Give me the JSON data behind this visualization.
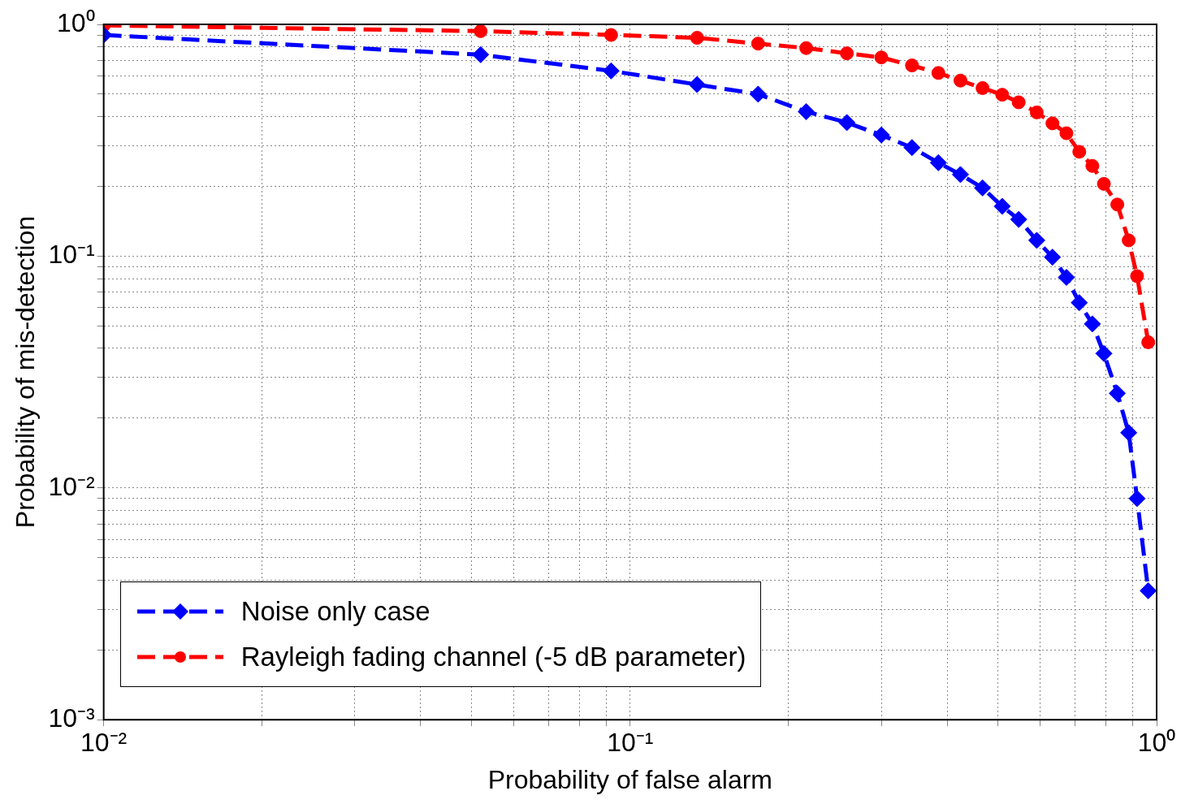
{
  "chart_data": {
    "type": "line",
    "xlabel": "Probability of false alarm",
    "ylabel": "Probability of mis-detection",
    "log": "xy",
    "grid": true,
    "legend": "bottom left",
    "xlim": [
      0.01,
      1
    ],
    "ylim": [
      0.001,
      1
    ],
    "xticks": [
      {
        "value": 0.01,
        "label": "10⁻²"
      },
      {
        "value": 0.1,
        "label": "10⁻¹"
      },
      {
        "value": 1,
        "label": "10⁰"
      }
    ],
    "yticks": [
      {
        "value": 0.001,
        "label": "10⁻³"
      },
      {
        "value": 0.01,
        "label": "10⁻²"
      },
      {
        "value": 0.1,
        "label": "10⁻¹"
      },
      {
        "value": 1,
        "label": "10⁰"
      }
    ],
    "x": [
      0.01,
      0.052,
      0.092,
      0.134,
      0.175,
      0.216,
      0.258,
      0.3,
      0.343,
      0.385,
      0.424,
      0.467,
      0.509,
      0.547,
      0.592,
      0.634,
      0.674,
      0.713,
      0.755,
      0.794,
      0.842,
      0.885,
      0.918,
      0.964
    ],
    "series": [
      {
        "name": "Noise only case",
        "color": "#0000ff",
        "marker": "diamond",
        "line_style": "dashed",
        "values": [
          0.9,
          0.74,
          0.63,
          0.55,
          0.5,
          0.42,
          0.377,
          0.333,
          0.294,
          0.253,
          0.225,
          0.197,
          0.164,
          0.144,
          0.117,
          0.099,
          0.081,
          0.063,
          0.051,
          0.038,
          0.0256,
          0.0173,
          0.009,
          0.0036
        ]
      },
      {
        "name": "Rayleigh fading channel (-5 dB parameter)",
        "color": "#ff0000",
        "marker": "circle",
        "line_style": "dashed",
        "values": [
          0.99,
          0.935,
          0.9,
          0.875,
          0.826,
          0.79,
          0.75,
          0.72,
          0.665,
          0.617,
          0.572,
          0.531,
          0.497,
          0.461,
          0.417,
          0.374,
          0.339,
          0.282,
          0.245,
          0.205,
          0.167,
          0.117,
          0.082,
          0.0425
        ]
      }
    ]
  }
}
